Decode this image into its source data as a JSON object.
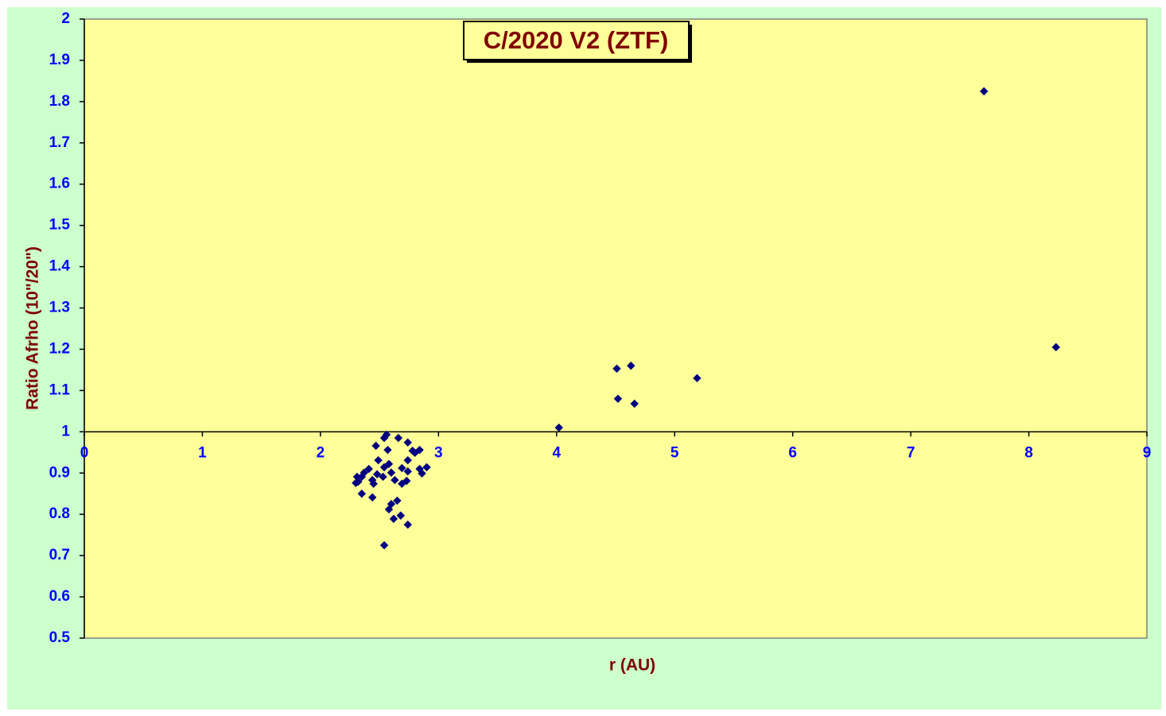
{
  "chart_data": {
    "type": "scatter",
    "title": "C/2020 V2 (ZTF)",
    "x_label": "r (AU)",
    "y_label": "Ratio Afrho (10\"/20\")",
    "xlim": [
      0,
      9
    ],
    "ylim": [
      0.5,
      2
    ],
    "xticks": [
      0,
      1,
      2,
      3,
      4,
      5,
      6,
      7,
      8,
      9
    ],
    "yticks": [
      0.5,
      0.6,
      0.7,
      0.8,
      0.9,
      1,
      1.1,
      1.2,
      1.3,
      1.4,
      1.5,
      1.6,
      1.7,
      1.8,
      1.9,
      2
    ],
    "x_axis_crosses_y": 1,
    "grid": false,
    "color": "#000080",
    "x": [
      7.62,
      8.23,
      4.63,
      4.51,
      5.19,
      4.52,
      4.66,
      4.02,
      2.56,
      2.54,
      2.66,
      2.74,
      2.47,
      2.57,
      2.78,
      2.84,
      2.8,
      2.74,
      2.49,
      2.9,
      2.54,
      2.58,
      2.41,
      2.69,
      2.84,
      2.74,
      2.37,
      2.31,
      2.6,
      2.86,
      2.48,
      2.35,
      2.53,
      2.44,
      2.63,
      2.32,
      2.45,
      2.73,
      2.69,
      2.35,
      2.44,
      2.65,
      2.6,
      2.58,
      2.68,
      2.62,
      2.74,
      2.54,
      2.3
    ],
    "y": [
      1.825,
      1.205,
      1.16,
      1.153,
      1.13,
      1.08,
      1.068,
      1.01,
      0.993,
      0.985,
      0.985,
      0.974,
      0.966,
      0.956,
      0.954,
      0.956,
      0.949,
      0.931,
      0.931,
      0.914,
      0.914,
      0.922,
      0.91,
      0.912,
      0.91,
      0.904,
      0.901,
      0.891,
      0.901,
      0.899,
      0.897,
      0.891,
      0.891,
      0.883,
      0.883,
      0.879,
      0.874,
      0.881,
      0.874,
      0.85,
      0.841,
      0.833,
      0.825,
      0.812,
      0.797,
      0.789,
      0.775,
      0.725,
      0.876
    ]
  }
}
